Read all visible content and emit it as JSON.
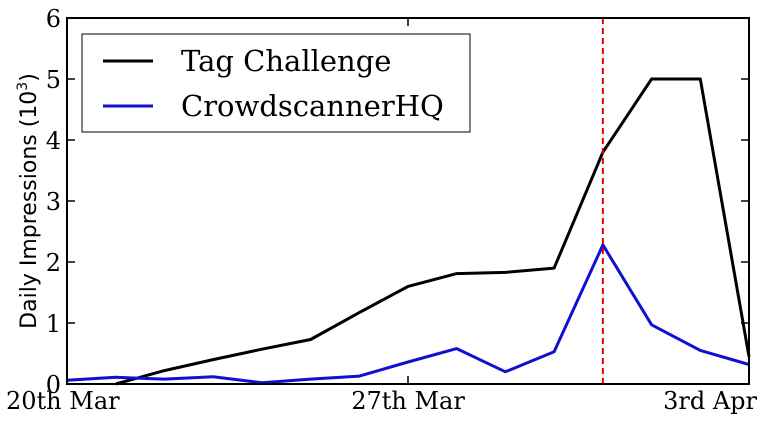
{
  "chart_data": {
    "type": "line",
    "title": "",
    "xlabel": "",
    "ylabel": "Daily Impressions (10",
    "ylabel_exponent": "3",
    "ylabel_suffix": ")",
    "x": [
      "2014-03-20",
      "2014-03-21",
      "2014-03-22",
      "2014-03-23",
      "2014-03-24",
      "2014-03-25",
      "2014-03-26",
      "2014-03-27",
      "2014-03-28",
      "2014-03-29",
      "2014-03-30",
      "2014-03-31",
      "2014-04-01",
      "2014-04-02",
      "2014-04-03"
    ],
    "xlim": [
      "2014-03-20",
      "2014-04-03"
    ],
    "ylim": [
      0,
      6
    ],
    "yticks": [
      0,
      1,
      2,
      3,
      4,
      5,
      6
    ],
    "xticks": [
      {
        "date": "2014-03-20",
        "label": "20th Mar"
      },
      {
        "date": "2014-03-27",
        "label": "27th Mar"
      },
      {
        "date": "2014-04-03",
        "label": "3rd Apr"
      }
    ],
    "series": [
      {
        "name": "Tag Challenge",
        "color": "#000000",
        "points": [
          [
            "2014-03-21",
            0.0
          ],
          [
            "2014-03-22",
            0.22
          ],
          [
            "2014-03-23",
            0.4
          ],
          [
            "2014-03-24",
            0.57
          ],
          [
            "2014-03-25",
            0.73
          ],
          [
            "2014-03-26",
            1.17
          ],
          [
            "2014-03-27",
            1.6
          ],
          [
            "2014-03-28",
            1.81
          ],
          [
            "2014-03-29",
            1.83
          ],
          [
            "2014-03-30",
            1.9
          ],
          [
            "2014-03-31",
            3.8
          ],
          [
            "2014-04-01",
            5.0
          ],
          [
            "2014-04-02",
            5.0
          ],
          [
            "2014-04-03",
            0.45
          ]
        ]
      },
      {
        "name": "CrowdscannerHQ",
        "color": "#1010d0",
        "points": [
          [
            "2014-03-20",
            0.06
          ],
          [
            "2014-03-21",
            0.11
          ],
          [
            "2014-03-22",
            0.08
          ],
          [
            "2014-03-23",
            0.12
          ],
          [
            "2014-03-24",
            0.02
          ],
          [
            "2014-03-25",
            0.08
          ],
          [
            "2014-03-26",
            0.13
          ],
          [
            "2014-03-27",
            0.36
          ],
          [
            "2014-03-28",
            0.58
          ],
          [
            "2014-03-29",
            0.2
          ],
          [
            "2014-03-30",
            0.53
          ],
          [
            "2014-03-31",
            2.28
          ],
          [
            "2014-04-01",
            0.97
          ],
          [
            "2014-04-02",
            0.55
          ],
          [
            "2014-04-03",
            0.32
          ]
        ]
      }
    ],
    "vertical_line": {
      "date": "2014-03-31",
      "color": "#e00000",
      "style": "dashed"
    },
    "legend": {
      "placement": "top-left"
    },
    "grid": false
  }
}
